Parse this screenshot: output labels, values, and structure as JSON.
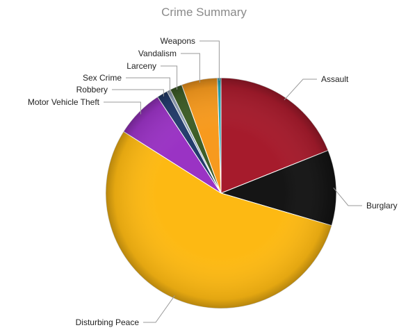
{
  "chart_data": {
    "type": "pie",
    "title": "Crime Summary",
    "slices": [
      {
        "label": "Assault",
        "value": 18.8,
        "color": "#a61b2c"
      },
      {
        "label": "Burglary",
        "value": 10.5,
        "color": "#151515"
      },
      {
        "label": "Disturbing Peace",
        "value": 54.0,
        "color": "#fdb913"
      },
      {
        "label": "Motor Vehicle Theft",
        "value": 6.7,
        "color": "#9a33c4"
      },
      {
        "label": "Robbery",
        "value": 1.5,
        "color": "#233c6c"
      },
      {
        "label": "Sex Crime",
        "value": 0.5,
        "color": "#8e9eb5"
      },
      {
        "label": "Larceny",
        "value": 1.7,
        "color": "#3e5e28"
      },
      {
        "label": "Vandalism",
        "value": 5.0,
        "color": "#f79a1e"
      },
      {
        "label": "Weapons",
        "value": 0.5,
        "color": "#25a6b2"
      }
    ],
    "legend": "none"
  }
}
